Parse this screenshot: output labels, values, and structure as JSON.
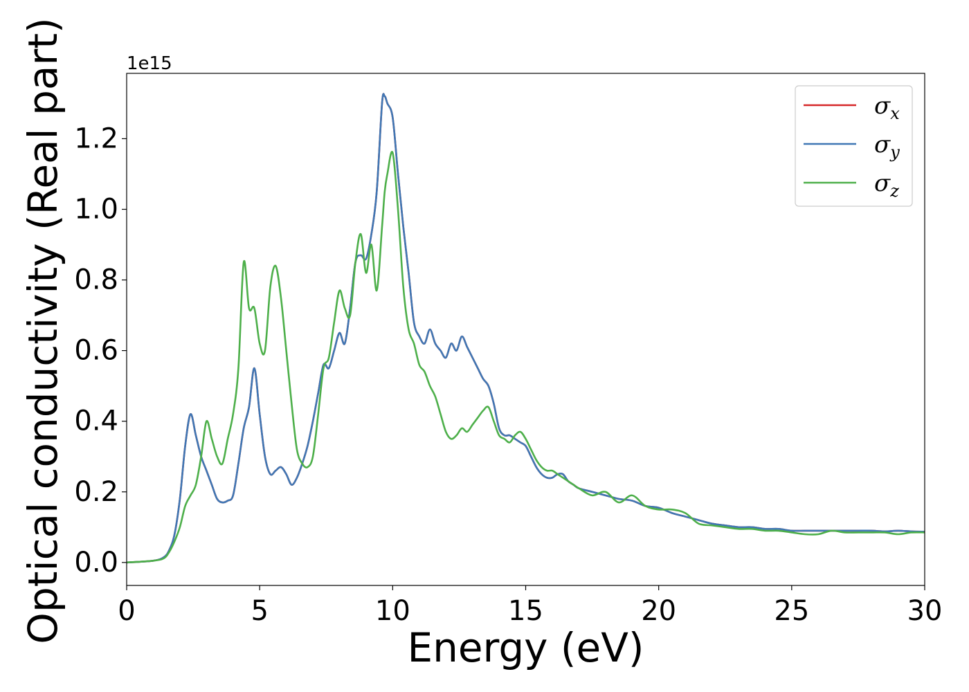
{
  "chart_data": {
    "type": "line",
    "xlabel": "Energy (eV)",
    "ylabel": "Optical conductivity (Real part)",
    "y_offset_text": "1e15",
    "xlim": [
      0,
      30
    ],
    "ylim": [
      -0.065,
      1.385
    ],
    "x_ticks": [
      "0",
      "5",
      "10",
      "15",
      "20",
      "25",
      "30"
    ],
    "x_tick_values": [
      0,
      5,
      10,
      15,
      20,
      25,
      30
    ],
    "y_ticks": [
      "0.0",
      "0.2",
      "0.4",
      "0.6",
      "0.8",
      "1.0",
      "1.2"
    ],
    "y_tick_values": [
      0.0,
      0.2,
      0.4,
      0.6,
      0.8,
      1.0,
      1.2
    ],
    "grid": false,
    "legend_position": "upper right",
    "series": [
      {
        "name": "σx",
        "symbol": "σ",
        "subscript": "x",
        "color": "#d62728",
        "x": [
          0,
          1,
          1.4,
          1.6,
          1.8,
          2.0,
          2.2,
          2.4,
          2.6,
          2.8,
          3.0,
          3.2,
          3.4,
          3.6,
          3.8,
          4.0,
          4.2,
          4.4,
          4.6,
          4.8,
          5.0,
          5.2,
          5.4,
          5.6,
          5.8,
          6.0,
          6.2,
          6.4,
          6.6,
          6.8,
          7.0,
          7.2,
          7.4,
          7.6,
          7.8,
          8.0,
          8.2,
          8.4,
          8.6,
          8.8,
          9.0,
          9.2,
          9.4,
          9.6,
          9.7,
          9.8,
          10.0,
          10.2,
          10.4,
          10.6,
          10.8,
          11.0,
          11.2,
          11.4,
          11.6,
          11.8,
          12.0,
          12.2,
          12.4,
          12.6,
          12.8,
          13.0,
          13.2,
          13.4,
          13.6,
          13.8,
          14.0,
          14.2,
          14.4,
          14.6,
          14.8,
          15.0,
          15.2,
          15.4,
          15.6,
          15.8,
          16.0,
          16.2,
          16.4,
          16.6,
          16.8,
          17.0,
          17.5,
          18.0,
          18.5,
          19.0,
          19.5,
          20.0,
          20.5,
          21.0,
          21.5,
          22.0,
          22.5,
          23.0,
          23.5,
          24.0,
          24.5,
          25.0,
          25.5,
          26.0,
          26.5,
          27.0,
          27.5,
          28.0,
          28.5,
          29.0,
          29.5,
          30.0
        ],
        "y": [
          0,
          0.005,
          0.015,
          0.035,
          0.08,
          0.18,
          0.33,
          0.42,
          0.36,
          0.3,
          0.26,
          0.22,
          0.18,
          0.17,
          0.175,
          0.19,
          0.28,
          0.38,
          0.44,
          0.55,
          0.42,
          0.3,
          0.25,
          0.26,
          0.27,
          0.25,
          0.22,
          0.24,
          0.28,
          0.33,
          0.4,
          0.48,
          0.56,
          0.55,
          0.6,
          0.65,
          0.62,
          0.72,
          0.85,
          0.87,
          0.86,
          0.93,
          1.05,
          1.3,
          1.32,
          1.3,
          1.26,
          1.1,
          0.95,
          0.82,
          0.68,
          0.64,
          0.62,
          0.66,
          0.62,
          0.6,
          0.58,
          0.62,
          0.6,
          0.64,
          0.61,
          0.58,
          0.55,
          0.52,
          0.5,
          0.45,
          0.38,
          0.36,
          0.36,
          0.35,
          0.34,
          0.33,
          0.3,
          0.27,
          0.25,
          0.24,
          0.24,
          0.25,
          0.25,
          0.23,
          0.22,
          0.21,
          0.2,
          0.19,
          0.18,
          0.175,
          0.16,
          0.155,
          0.14,
          0.13,
          0.12,
          0.11,
          0.105,
          0.1,
          0.1,
          0.095,
          0.095,
          0.09,
          0.09,
          0.09,
          0.09,
          0.09,
          0.09,
          0.09,
          0.088,
          0.09,
          0.088,
          0.087
        ]
      },
      {
        "name": "σy",
        "symbol": "σ",
        "subscript": "y",
        "color": "#3f77b4",
        "x": [
          0,
          1,
          1.4,
          1.6,
          1.8,
          2.0,
          2.2,
          2.4,
          2.6,
          2.8,
          3.0,
          3.2,
          3.4,
          3.6,
          3.8,
          4.0,
          4.2,
          4.4,
          4.6,
          4.8,
          5.0,
          5.2,
          5.4,
          5.6,
          5.8,
          6.0,
          6.2,
          6.4,
          6.6,
          6.8,
          7.0,
          7.2,
          7.4,
          7.6,
          7.8,
          8.0,
          8.2,
          8.4,
          8.6,
          8.8,
          9.0,
          9.2,
          9.4,
          9.6,
          9.7,
          9.8,
          10.0,
          10.2,
          10.4,
          10.6,
          10.8,
          11.0,
          11.2,
          11.4,
          11.6,
          11.8,
          12.0,
          12.2,
          12.4,
          12.6,
          12.8,
          13.0,
          13.2,
          13.4,
          13.6,
          13.8,
          14.0,
          14.2,
          14.4,
          14.6,
          14.8,
          15.0,
          15.2,
          15.4,
          15.6,
          15.8,
          16.0,
          16.2,
          16.4,
          16.6,
          16.8,
          17.0,
          17.5,
          18.0,
          18.5,
          19.0,
          19.5,
          20.0,
          20.5,
          21.0,
          21.5,
          22.0,
          22.5,
          23.0,
          23.5,
          24.0,
          24.5,
          25.0,
          25.5,
          26.0,
          26.5,
          27.0,
          27.5,
          28.0,
          28.5,
          29.0,
          29.5,
          30.0
        ],
        "y": [
          0,
          0.005,
          0.015,
          0.035,
          0.08,
          0.18,
          0.33,
          0.42,
          0.36,
          0.3,
          0.26,
          0.22,
          0.18,
          0.17,
          0.175,
          0.19,
          0.28,
          0.38,
          0.44,
          0.55,
          0.42,
          0.3,
          0.25,
          0.26,
          0.27,
          0.25,
          0.22,
          0.24,
          0.28,
          0.33,
          0.4,
          0.48,
          0.56,
          0.55,
          0.6,
          0.65,
          0.62,
          0.72,
          0.85,
          0.87,
          0.86,
          0.93,
          1.05,
          1.3,
          1.32,
          1.3,
          1.26,
          1.1,
          0.95,
          0.82,
          0.68,
          0.64,
          0.62,
          0.66,
          0.62,
          0.6,
          0.58,
          0.62,
          0.6,
          0.64,
          0.61,
          0.58,
          0.55,
          0.52,
          0.5,
          0.45,
          0.38,
          0.36,
          0.36,
          0.35,
          0.34,
          0.33,
          0.3,
          0.27,
          0.25,
          0.24,
          0.24,
          0.25,
          0.25,
          0.23,
          0.22,
          0.21,
          0.2,
          0.19,
          0.18,
          0.175,
          0.16,
          0.155,
          0.14,
          0.13,
          0.12,
          0.11,
          0.105,
          0.1,
          0.1,
          0.095,
          0.095,
          0.09,
          0.09,
          0.09,
          0.09,
          0.09,
          0.09,
          0.09,
          0.088,
          0.09,
          0.088,
          0.087
        ]
      },
      {
        "name": "σz",
        "symbol": "σ",
        "subscript": "z",
        "color": "#4daf4a",
        "x": [
          0,
          1,
          1.4,
          1.6,
          1.8,
          2.0,
          2.2,
          2.4,
          2.6,
          2.8,
          3.0,
          3.2,
          3.4,
          3.6,
          3.8,
          4.0,
          4.2,
          4.4,
          4.6,
          4.8,
          5.0,
          5.2,
          5.4,
          5.6,
          5.8,
          6.0,
          6.2,
          6.4,
          6.6,
          6.8,
          7.0,
          7.2,
          7.4,
          7.6,
          7.8,
          8.0,
          8.2,
          8.4,
          8.6,
          8.8,
          9.0,
          9.2,
          9.4,
          9.6,
          9.7,
          9.8,
          10.0,
          10.2,
          10.4,
          10.6,
          10.8,
          11.0,
          11.2,
          11.4,
          11.6,
          11.8,
          12.0,
          12.2,
          12.4,
          12.6,
          12.8,
          13.0,
          13.2,
          13.4,
          13.6,
          13.8,
          14.0,
          14.2,
          14.4,
          14.6,
          14.8,
          15.0,
          15.2,
          15.4,
          15.6,
          15.8,
          16.0,
          16.2,
          16.4,
          16.6,
          16.8,
          17.0,
          17.5,
          18.0,
          18.5,
          19.0,
          19.5,
          20.0,
          20.5,
          21.0,
          21.5,
          22.0,
          22.5,
          23.0,
          23.5,
          24.0,
          24.5,
          25.0,
          25.5,
          26.0,
          26.5,
          27.0,
          27.5,
          28.0,
          28.5,
          29.0,
          29.5,
          30.0
        ],
        "y": [
          0,
          0.005,
          0.012,
          0.03,
          0.06,
          0.1,
          0.16,
          0.19,
          0.22,
          0.3,
          0.4,
          0.35,
          0.3,
          0.28,
          0.35,
          0.42,
          0.55,
          0.85,
          0.72,
          0.72,
          0.62,
          0.6,
          0.78,
          0.84,
          0.75,
          0.6,
          0.45,
          0.32,
          0.28,
          0.27,
          0.3,
          0.42,
          0.55,
          0.58,
          0.68,
          0.77,
          0.72,
          0.7,
          0.85,
          0.93,
          0.82,
          0.9,
          0.77,
          0.95,
          1.05,
          1.1,
          1.16,
          1.0,
          0.78,
          0.66,
          0.62,
          0.56,
          0.54,
          0.5,
          0.47,
          0.42,
          0.37,
          0.35,
          0.36,
          0.38,
          0.37,
          0.39,
          0.41,
          0.43,
          0.44,
          0.4,
          0.36,
          0.35,
          0.34,
          0.36,
          0.37,
          0.35,
          0.32,
          0.29,
          0.27,
          0.26,
          0.26,
          0.25,
          0.24,
          0.23,
          0.22,
          0.21,
          0.19,
          0.2,
          0.17,
          0.19,
          0.16,
          0.15,
          0.15,
          0.14,
          0.11,
          0.105,
          0.1,
          0.095,
          0.095,
          0.09,
          0.09,
          0.085,
          0.08,
          0.08,
          0.09,
          0.085,
          0.085,
          0.085,
          0.085,
          0.08,
          0.085,
          0.085
        ]
      }
    ]
  }
}
